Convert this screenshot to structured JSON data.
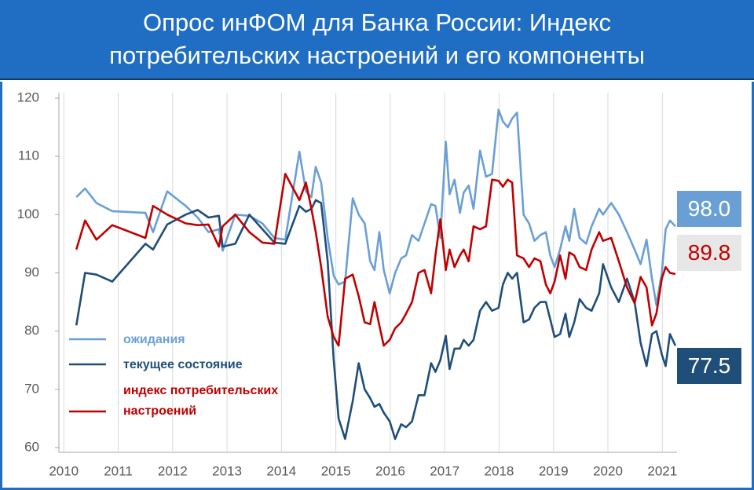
{
  "chart_data": {
    "type": "line",
    "title": "Опрос инФОМ для Банка России: Индекс потребительских настроений и его компоненты",
    "x": [
      2010.23,
      2010.39,
      2010.6,
      2010.89,
      2011.5,
      2011.64,
      2011.9,
      2012.24,
      2012.46,
      2012.66,
      2012.85,
      2012.92,
      2013.15,
      2013.41,
      2013.65,
      2013.87,
      2014.07,
      2014.33,
      2014.45,
      2014.55,
      2014.63,
      2014.73,
      2014.85,
      2014.96,
      2015.05,
      2015.17,
      2015.31,
      2015.42,
      2015.53,
      2015.63,
      2015.71,
      2015.8,
      2015.88,
      2015.99,
      2016.09,
      2016.2,
      2016.29,
      2016.4,
      2016.52,
      2016.63,
      2016.75,
      2016.83,
      2016.92,
      2017.02,
      2017.09,
      2017.18,
      2017.28,
      2017.35,
      2017.44,
      2017.53,
      2017.65,
      2017.76,
      2017.87,
      2017.99,
      2018.07,
      2018.16,
      2018.24,
      2018.33,
      2018.45,
      2018.55,
      2018.65,
      2018.76,
      2018.86,
      2018.94,
      2019.02,
      2019.12,
      2019.22,
      2019.29,
      2019.38,
      2019.48,
      2019.6,
      2019.7,
      2019.84,
      2019.91,
      2020.06,
      2020.2,
      2020.35,
      2020.49,
      2020.6,
      2020.71,
      2020.81,
      2020.89,
      2020.99,
      2021.06,
      2021.14,
      2021.24
    ],
    "series": [
      {
        "name": "ожидания",
        "color": "#6a9fd5",
        "end_label": "98.0",
        "values": [
          103,
          104.5,
          102,
          100.6,
          100.3,
          97,
          104,
          101.5,
          99.5,
          97,
          97.5,
          93.8,
          100,
          99.8,
          98.5,
          96,
          95.7,
          110.8,
          104,
          103,
          108.2,
          105.5,
          96,
          89.5,
          88,
          88.5,
          102.8,
          100,
          98.5,
          92,
          90.5,
          97,
          90.5,
          86.5,
          90,
          92.5,
          93,
          96.5,
          95.5,
          98.5,
          101.8,
          101.5,
          96,
          112.5,
          103.5,
          106,
          100.3,
          103.8,
          105,
          101,
          111,
          106.5,
          107,
          118,
          116,
          115,
          116.5,
          117.5,
          100,
          98.5,
          95.5,
          96.5,
          97,
          93,
          91,
          94,
          98,
          95.5,
          101,
          96,
          95,
          98,
          101,
          100,
          102,
          100,
          97,
          94,
          91.5,
          95.7,
          89,
          84.5,
          90,
          97.5,
          99,
          98
        ]
      },
      {
        "name": "текущее состояние",
        "color": "#1f4e79",
        "end_label": "77.5",
        "values": [
          81,
          90,
          89.7,
          88.5,
          95,
          94,
          98.3,
          100,
          100.8,
          99.5,
          99.8,
          94.5,
          95,
          100,
          97.5,
          95.2,
          95,
          101.5,
          100.5,
          101,
          102.5,
          102,
          92,
          75,
          65,
          61.5,
          68,
          74.5,
          70,
          68.5,
          67,
          67.5,
          66,
          64.5,
          61.5,
          64,
          63.5,
          64.5,
          69,
          69,
          74.5,
          73,
          75,
          79.2,
          73.5,
          77,
          77,
          78.5,
          77.5,
          78.5,
          83.5,
          85,
          83.5,
          84,
          88,
          90,
          89,
          90,
          81.5,
          82,
          84,
          85,
          85,
          82,
          79,
          79.5,
          83,
          79,
          81.5,
          85.5,
          84,
          83.5,
          86.5,
          91.5,
          87.5,
          85,
          89,
          85,
          78,
          74,
          79.5,
          80,
          76,
          74,
          79.5,
          77.5
        ]
      },
      {
        "name": "индекс потребительских настроений",
        "color": "#c00000",
        "end_label": "89.8",
        "values": [
          94,
          99,
          95.7,
          98.2,
          96,
          101.5,
          100,
          98.5,
          98.2,
          98.3,
          94.5,
          98,
          100,
          97,
          95.2,
          95,
          107,
          102.5,
          105.5,
          101,
          97,
          91,
          82.5,
          79,
          77.5,
          89,
          89.7,
          86,
          81.5,
          81.2,
          85,
          81,
          77.5,
          78.5,
          80.5,
          81.5,
          83,
          85,
          90,
          90.5,
          86.5,
          93,
          99.2,
          90.5,
          94,
          91,
          93,
          94,
          92,
          98,
          97.5,
          98,
          106,
          105.8,
          104.8,
          106,
          105.5,
          93,
          92.5,
          91,
          92.5,
          92,
          88,
          86.5,
          88.5,
          93,
          89,
          93.5,
          93,
          91,
          90.5,
          94,
          97,
          95.5,
          96,
          92,
          87.5,
          84.8,
          89.3,
          87.5,
          81,
          83,
          89,
          91,
          90,
          89.8
        ]
      }
    ],
    "xlim": [
      2009.91,
      2021.27
    ],
    "xticks": [
      2010,
      2011,
      2012,
      2013,
      2014,
      2015,
      2016,
      2017,
      2018,
      2019,
      2020,
      2021
    ],
    "ylim": [
      60,
      120
    ],
    "yticks": [
      60,
      70,
      80,
      90,
      100,
      110,
      120
    ],
    "grid": "x"
  }
}
